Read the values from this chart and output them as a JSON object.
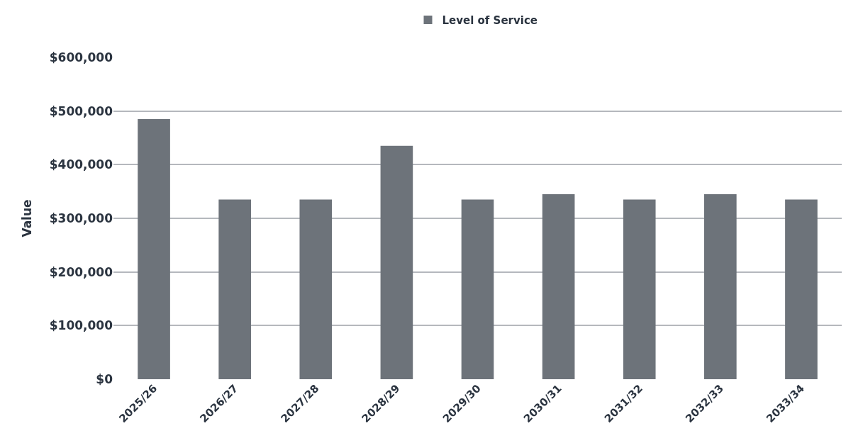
{
  "chart_data": {
    "type": "bar",
    "ylabel": "Value",
    "categories": [
      "2025/26",
      "2026/27",
      "2027/28",
      "2028/29",
      "2029/30",
      "2030/31",
      "2031/32",
      "2032/33",
      "2033/34"
    ],
    "series": [
      {
        "name": "Level of Service",
        "color": "#6d737a",
        "values": [
          485000,
          335000,
          335000,
          435000,
          335000,
          345000,
          335000,
          345000,
          335000
        ]
      }
    ],
    "ylim": [
      0,
      600000
    ],
    "yticks": [
      {
        "value": 0,
        "label": "$0"
      },
      {
        "value": 100000,
        "label": "$100,000"
      },
      {
        "value": 200000,
        "label": "$200,000"
      },
      {
        "value": 300000,
        "label": "$300,000"
      },
      {
        "value": 400000,
        "label": "$400,000"
      },
      {
        "value": 500000,
        "label": "$500,000"
      },
      {
        "value": 600000,
        "label": "$600,000"
      }
    ],
    "grid": "y",
    "legend": "top"
  }
}
